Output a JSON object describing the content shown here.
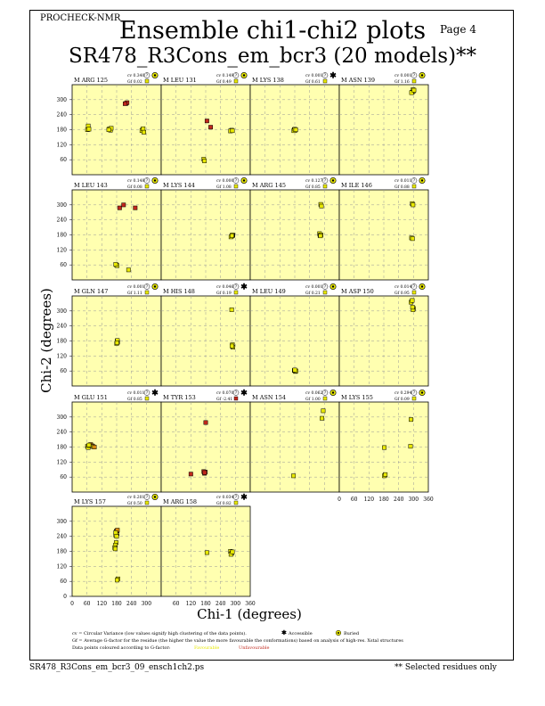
{
  "header": {
    "program": "PROCHECK-NMR",
    "page_label": "Page  4",
    "title": "Ensemble chi1-chi2 plots",
    "subtitle": "SR478_R3Cons_em_bcr3 (20 models)**"
  },
  "footer": {
    "filename": "SR478_R3Cons_em_bcr3_09_ensch1ch2.ps",
    "note": "** Selected residues only"
  },
  "legend": {
    "cv_line": "cv = Circular Variance (low values signify high clustering of the data points).",
    "accessible_label": "Accessible",
    "buried_label": "Buried",
    "gf_line": "Gf = Average G-factor for the residue (the higher the value the more favourable the conformations) based on analysis of high-res. Xstal structures",
    "colour_line": "Data points coloured according to G-factor:",
    "favourable_label": "Favourable",
    "unfavourable_label": "Unfavourable"
  },
  "colors": {
    "panel_bg": "#ffffb0",
    "favourable": "#e8e800",
    "unfavourable": "#c0281c",
    "intermediate": "#d88a10"
  },
  "chart_data": {
    "type": "scatter",
    "xlabel": "Chi-1 (degrees)",
    "ylabel": "Chi-2 (degrees)",
    "xlim": [
      0,
      360
    ],
    "ylim": [
      0,
      360
    ],
    "xticks": [
      0,
      60,
      120,
      180,
      240,
      300,
      360
    ],
    "yticks": [
      0,
      60,
      120,
      180,
      240,
      300
    ],
    "grid": true,
    "panels": [
      {
        "residue": "M ARG 125",
        "cv": "0.340",
        "gf": "0.02",
        "acc_icon": "buried",
        "gf_color": "favourable",
        "points": [
          [
            65,
            195
          ],
          [
            62,
            180
          ],
          [
            68,
            182
          ],
          [
            150,
            183
          ],
          [
            155,
            178
          ],
          [
            158,
            186
          ],
          [
            148,
            180
          ],
          [
            285,
            180
          ],
          [
            282,
            176
          ],
          [
            287,
            184
          ],
          [
            290,
            170
          ],
          [
            218,
            285
          ],
          [
            222,
            288
          ],
          [
            214,
            284
          ]
        ],
        "fav": [
          1,
          1,
          1,
          1,
          1,
          1,
          1,
          1,
          1,
          1,
          1,
          0,
          0,
          0
        ]
      },
      {
        "residue": "M LEU 131",
        "cv": "0.149",
        "gf": "0.49",
        "acc_icon": "buried",
        "gf_color": "favourable",
        "points": [
          [
            185,
            215
          ],
          [
            200,
            190
          ],
          [
            285,
            178
          ],
          [
            280,
            175
          ],
          [
            288,
            176
          ],
          [
            172,
            62
          ],
          [
            175,
            55
          ]
        ],
        "fav": [
          0,
          0,
          1,
          1,
          1,
          1,
          1
        ]
      },
      {
        "residue": "M LYS 138",
        "cv": "0.001",
        "gf": "0.61",
        "acc_icon": "accessible",
        "gf_color": "favourable",
        "points": [
          [
            178,
            180
          ],
          [
            182,
            178
          ],
          [
            176,
            176
          ],
          [
            180,
            182
          ],
          [
            184,
            180
          ]
        ],
        "fav": [
          1,
          1,
          1,
          1,
          1
        ]
      },
      {
        "residue": "M ASN 139",
        "cv": "0.001",
        "gf": "1.16",
        "acc_icon": "buried",
        "gf_color": "favourable",
        "points": [
          [
            295,
            330
          ],
          [
            300,
            335
          ],
          [
            298,
            340
          ],
          [
            292,
            328
          ],
          [
            302,
            338
          ]
        ],
        "fav": [
          1,
          1,
          1,
          1,
          1
        ]
      },
      {
        "residue": "M LEU 143",
        "cv": "0.148",
        "gf": "0.08",
        "acc_icon": "buried",
        "gf_color": "favourable",
        "points": [
          [
            192,
            288
          ],
          [
            208,
            300
          ],
          [
            255,
            288
          ],
          [
            178,
            60
          ],
          [
            182,
            57
          ],
          [
            176,
            62
          ],
          [
            228,
            40
          ]
        ],
        "fav": [
          0,
          0,
          0,
          1,
          1,
          1,
          1
        ]
      },
      {
        "residue": "M LYS 144",
        "cv": "0.000",
        "gf": "1.08",
        "acc_icon": "buried",
        "gf_color": "favourable",
        "points": [
          [
            285,
            175
          ],
          [
            290,
            178
          ],
          [
            282,
            172
          ],
          [
            288,
            180
          ],
          [
            286,
            177
          ]
        ],
        "fav": [
          1,
          1,
          1,
          1,
          1
        ]
      },
      {
        "residue": "M ARG 145",
        "cv": "0.127",
        "gf": "0.85",
        "acc_icon": "buried",
        "gf_color": "favourable",
        "points": [
          [
            285,
            302
          ],
          [
            288,
            295
          ],
          [
            280,
            185
          ],
          [
            282,
            178
          ],
          [
            286,
            180
          ],
          [
            284,
            176
          ]
        ],
        "fav": [
          1,
          1,
          1,
          1,
          1,
          1
        ]
      },
      {
        "residue": "M ILE 146",
        "cv": "0.011",
        "gf": "0.88",
        "acc_icon": "buried",
        "gf_color": "favourable",
        "points": [
          [
            295,
            305
          ],
          [
            298,
            300
          ],
          [
            292,
            168
          ],
          [
            296,
            165
          ]
        ],
        "fav": [
          1,
          1,
          1,
          1
        ]
      },
      {
        "residue": "M GLN 147",
        "cv": "0.001",
        "gf": "1.11",
        "acc_icon": "buried",
        "gf_color": "favourable",
        "points": [
          [
            182,
            180
          ],
          [
            184,
            175
          ],
          [
            180,
            170
          ],
          [
            183,
            182
          ],
          [
            181,
            173
          ]
        ],
        "fav": [
          1,
          1,
          1,
          1,
          1
        ]
      },
      {
        "residue": "M HIS 148",
        "cv": "0.046",
        "gf": "0.19",
        "acc_icon": "accessible",
        "gf_color": "favourable",
        "points": [
          [
            285,
            305
          ],
          [
            288,
            165
          ],
          [
            290,
            155
          ],
          [
            286,
            160
          ]
        ],
        "fav": [
          1,
          1,
          1,
          1
        ]
      },
      {
        "residue": "M LEU 149",
        "cv": "0.001",
        "gf": "0.21",
        "acc_icon": "buried",
        "gf_color": "favourable",
        "points": [
          [
            178,
            62
          ],
          [
            182,
            58
          ],
          [
            185,
            60
          ],
          [
            180,
            64
          ]
        ],
        "fav": [
          1,
          1,
          1,
          1
        ]
      },
      {
        "residue": "M ASP 150",
        "cv": "0.014",
        "gf": "0.95",
        "acc_icon": "buried",
        "gf_color": "favourable",
        "points": [
          [
            290,
            335
          ],
          [
            295,
            342
          ],
          [
            300,
            310
          ],
          [
            298,
            305
          ],
          [
            296,
            315
          ]
        ],
        "fav": [
          1,
          1,
          1,
          1,
          1
        ]
      },
      {
        "residue": "M GLU 151",
        "cv": "0.011",
        "gf": "0.85",
        "acc_icon": "accessible",
        "gf_color": "favourable",
        "points": [
          [
            62,
            183
          ],
          [
            65,
            178
          ],
          [
            70,
            186
          ],
          [
            75,
            190
          ],
          [
            80,
            185
          ],
          [
            85,
            182
          ],
          [
            90,
            180
          ],
          [
            68,
            188
          ]
        ],
        "fav": [
          1,
          1,
          1,
          0.5,
          0.5,
          1,
          0.5,
          1
        ]
      },
      {
        "residue": "M TYR 153",
        "cv": "0.070",
        "gf": "-2.41",
        "acc_icon": "accessible",
        "gf_color": "unfavourable",
        "points": [
          [
            180,
            278
          ],
          [
            120,
            72
          ],
          [
            175,
            75
          ],
          [
            178,
            80
          ],
          [
            172,
            82
          ],
          [
            176,
            78
          ]
        ],
        "fav": [
          0,
          0,
          0,
          0,
          0,
          0
        ]
      },
      {
        "residue": "M ASN 154",
        "cv": "0.062",
        "gf": "1.00",
        "acc_icon": "buried",
        "gf_color": "favourable",
        "points": [
          [
            295,
            325
          ],
          [
            290,
            295
          ],
          [
            175,
            65
          ]
        ],
        "fav": [
          1,
          1,
          1
        ]
      },
      {
        "residue": "M LYS 155",
        "cv": "0.294",
        "gf": "0.09",
        "acc_icon": "buried",
        "gf_color": "favourable",
        "points": [
          [
            290,
            290
          ],
          [
            288,
            183
          ],
          [
            182,
            178
          ],
          [
            185,
            68
          ],
          [
            182,
            65
          ],
          [
            186,
            70
          ]
        ],
        "fav": [
          1,
          1,
          1,
          1,
          1,
          1
        ]
      },
      {
        "residue": "M LYS 157",
        "cv": "0.201",
        "gf": "0.50",
        "acc_icon": "buried",
        "gf_color": "favourable",
        "points": [
          [
            180,
            262
          ],
          [
            178,
            258
          ],
          [
            182,
            250
          ],
          [
            176,
            245
          ],
          [
            180,
            240
          ],
          [
            178,
            215
          ],
          [
            175,
            205
          ],
          [
            172,
            195
          ],
          [
            174,
            190
          ],
          [
            180,
            262
          ],
          [
            183,
            265
          ],
          [
            176,
            255
          ],
          [
            185,
            70
          ],
          [
            182,
            65
          ]
        ],
        "fav": [
          0.5,
          0.5,
          1,
          1,
          1,
          1,
          1,
          1,
          1,
          0.5,
          0.5,
          1,
          1,
          1
        ]
      },
      {
        "residue": "M ARG 158",
        "cv": "0.034",
        "gf": "0.82",
        "acc_icon": "accessible",
        "gf_color": "favourable",
        "points": [
          [
            185,
            175
          ],
          [
            280,
            180
          ],
          [
            285,
            172
          ],
          [
            282,
            168
          ],
          [
            288,
            178
          ]
        ],
        "fav": [
          1,
          1,
          1,
          1,
          1
        ]
      }
    ]
  }
}
